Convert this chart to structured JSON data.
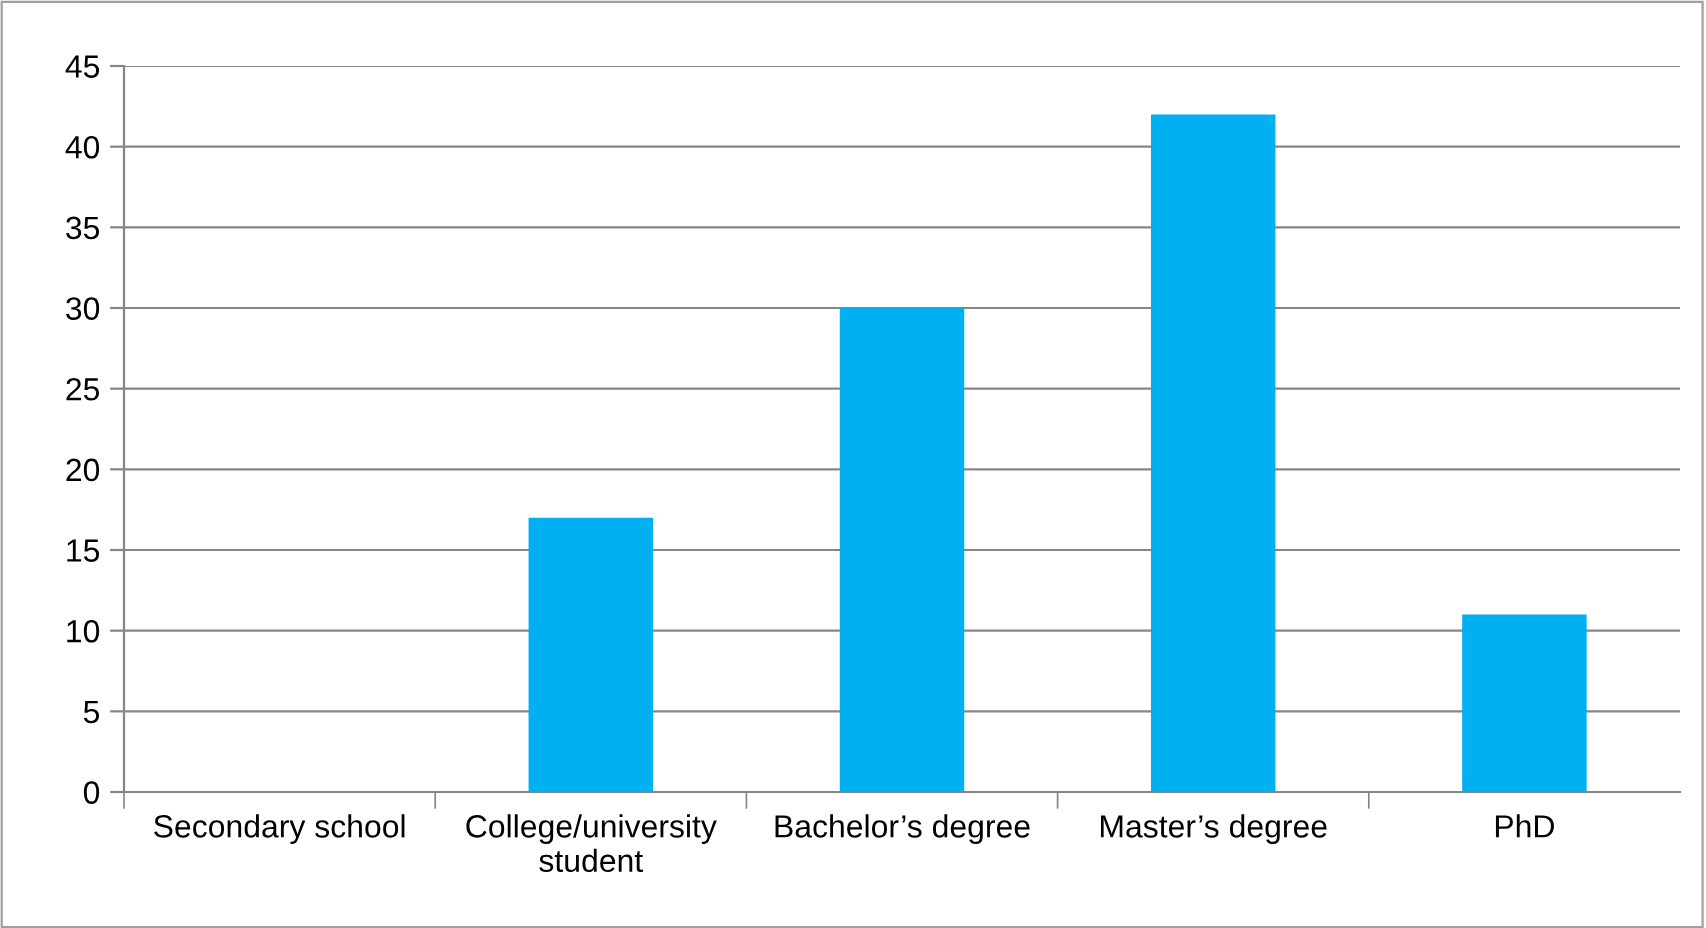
{
  "chart_data": {
    "type": "bar",
    "categories": [
      "Secondary school",
      "College/university student",
      "Bachelor’s degree",
      "Master’s degree",
      "PhD"
    ],
    "values": [
      0,
      17,
      30,
      42,
      11
    ],
    "color": "#00b0f0",
    "ylim": [
      0,
      45
    ],
    "yticks": [
      0,
      5,
      10,
      15,
      20,
      25,
      30,
      35,
      40,
      45
    ],
    "grid": "y",
    "legend": false
  }
}
